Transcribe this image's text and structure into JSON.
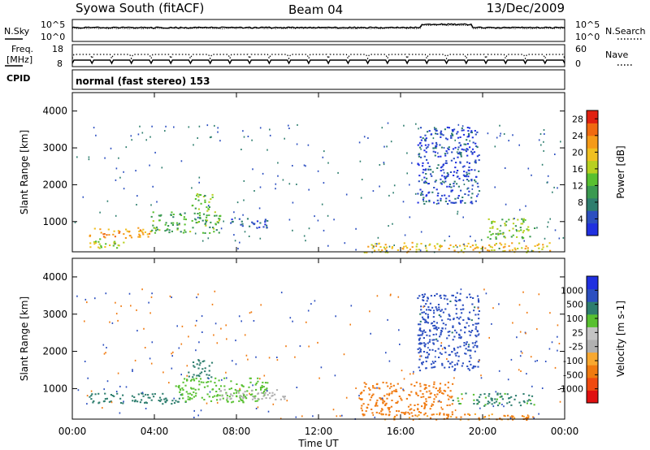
{
  "header": {
    "station": "Syowa South (fitACF)",
    "beam": "Beam 04",
    "date": "13/Dec/2009"
  },
  "noise_panel": {
    "left_label": "N.Sky",
    "right_label": "N.Search",
    "ticks": [
      "10^5",
      "10^0"
    ],
    "right_ticks": [
      "10^5",
      "10^0"
    ]
  },
  "freq_panel": {
    "left_label": "Freq.",
    "left_unit": "[MHz]",
    "left_ticks": [
      "18",
      "8"
    ],
    "right_label": "Nave",
    "right_ticks": [
      "60",
      "0"
    ]
  },
  "cpid_panel": {
    "label": "CPID",
    "text": "normal (fast stereo) 153"
  },
  "x_axis": {
    "label": "Time UT",
    "ticks": [
      "00:00",
      "04:00",
      "08:00",
      "12:00",
      "16:00",
      "20:00",
      "00:00"
    ]
  },
  "colors": {
    "power": [
      "#2030e0",
      "#2c4fc0",
      "#2e7e6e",
      "#3a9a50",
      "#58c030",
      "#b8d020",
      "#f0c020",
      "#f59a18",
      "#f06a10",
      "#e02010"
    ],
    "velocity": [
      "#e01010",
      "#f04a10",
      "#f07a10",
      "#f8a830",
      "#b0b0b0",
      "#c4c4c4",
      "#58c030",
      "#2e7e6e",
      "#2c4fc0",
      "#2030e0"
    ]
  },
  "chart_data": [
    {
      "type": "heatmap",
      "title": "Power",
      "xlabel": "Time UT",
      "ylabel": "Slant Range [km]",
      "xlim_hours": [
        0,
        24
      ],
      "ylim": [
        180,
        4500
      ],
      "y_ticks": [
        "1000",
        "2000",
        "3000",
        "4000"
      ],
      "colorbar": {
        "label": "Power [dB]",
        "ticks": [
          "4",
          "8",
          "12",
          "16",
          "20",
          "24",
          "28"
        ],
        "range": [
          0,
          30
        ]
      },
      "regions": [
        {
          "t": [
            0.8,
            3.8
          ],
          "r": [
            550,
            850
          ],
          "value": 22
        },
        {
          "t": [
            0.6,
            2.6
          ],
          "r": [
            300,
            550
          ],
          "value": 16
        },
        {
          "t": [
            3.8,
            7.2
          ],
          "r": [
            700,
            1300
          ],
          "value": 12
        },
        {
          "t": [
            5.8,
            6.8
          ],
          "r": [
            1300,
            1800
          ],
          "value": 14
        },
        {
          "t": [
            7.5,
            9.6
          ],
          "r": [
            850,
            1100
          ],
          "value": 4
        },
        {
          "t": [
            14.2,
            23.5
          ],
          "r": [
            180,
            450
          ],
          "value": 20
        },
        {
          "t": [
            16.8,
            19.8
          ],
          "r": [
            1500,
            3600
          ],
          "value": 4
        },
        {
          "t": [
            20.2,
            22.5
          ],
          "r": [
            550,
            1100
          ],
          "value": 14
        }
      ]
    },
    {
      "type": "heatmap",
      "title": "Velocity",
      "xlabel": "Time UT",
      "ylabel": "Slant Range [km]",
      "xlim_hours": [
        0,
        24
      ],
      "ylim": [
        180,
        4500
      ],
      "y_ticks": [
        "1000",
        "2000",
        "3000",
        "4000"
      ],
      "colorbar": {
        "label": "Velocity [m s-1]",
        "ticks": [
          "1000",
          "500",
          "100",
          "25",
          "-25",
          "-100",
          "-500",
          "-1000"
        ]
      },
      "regions": [
        {
          "t": [
            0.8,
            5.5
          ],
          "r": [
            600,
            900
          ],
          "value": 150
        },
        {
          "t": [
            5.0,
            9.5
          ],
          "r": [
            650,
            1300
          ],
          "value": 60
        },
        {
          "t": [
            5.6,
            6.8
          ],
          "r": [
            1300,
            1800
          ],
          "value": 300
        },
        {
          "t": [
            7.0,
            10.5
          ],
          "r": [
            700,
            1000
          ],
          "value": 0
        },
        {
          "t": [
            14.0,
            18.5
          ],
          "r": [
            300,
            1200
          ],
          "value": -300
        },
        {
          "t": [
            15.0,
            22.5
          ],
          "r": [
            180,
            350
          ],
          "value": -100
        },
        {
          "t": [
            16.8,
            19.8
          ],
          "r": [
            1500,
            3600
          ],
          "value": 700
        },
        {
          "t": [
            18.5,
            22.5
          ],
          "r": [
            550,
            900
          ],
          "value": 120
        }
      ]
    }
  ]
}
